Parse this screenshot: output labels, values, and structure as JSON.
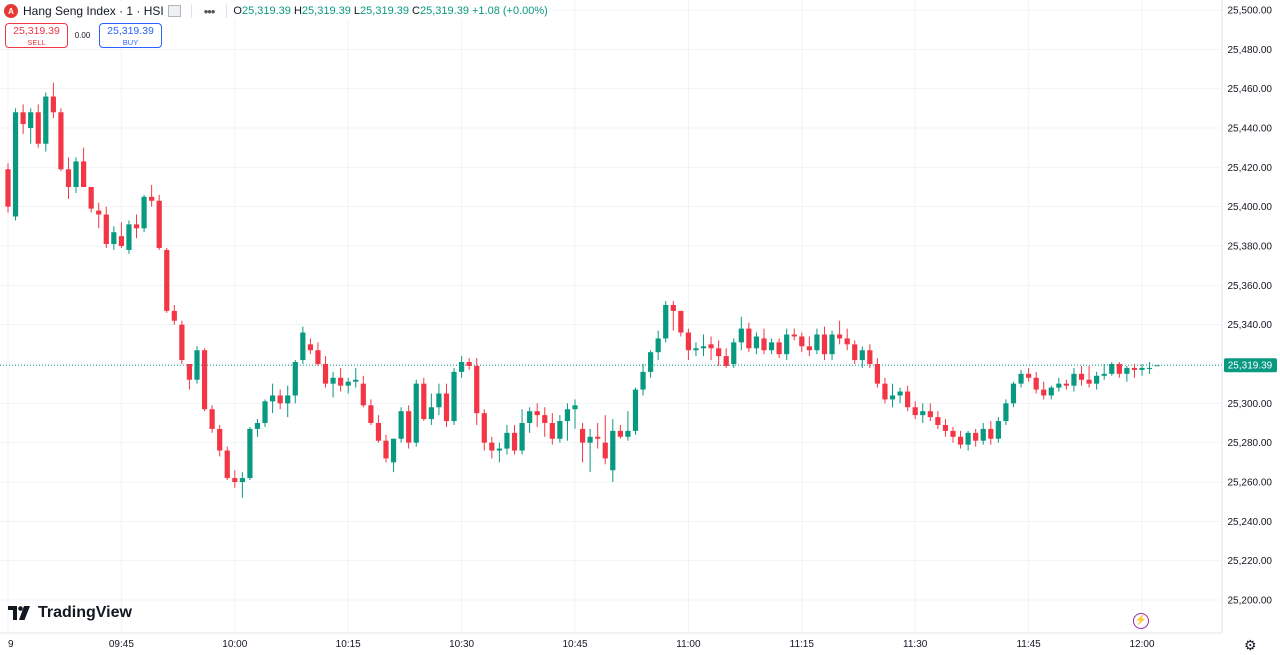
{
  "header": {
    "symbol_badge": "A",
    "symbol": "Hang Seng Index · 1 · HSI",
    "ohlc": [
      {
        "k": "O",
        "v": "25,319.39"
      },
      {
        "k": "H",
        "v": "25,319.39"
      },
      {
        "k": "L",
        "v": "25,319.39"
      },
      {
        "k": "C",
        "v": "25,319.39"
      }
    ],
    "change": "+1.08 (+0.00%)"
  },
  "trade": {
    "sell_price": "25,319.39",
    "sell_label": "SELL",
    "spread": "0.00",
    "buy_price": "25,319.39",
    "buy_label": "BUY"
  },
  "brand": "TradingView",
  "last_price_label": "25,319.39",
  "colors": {
    "up": "#089981",
    "down": "#f23645",
    "grid": "#f0f3fa"
  },
  "chart_data": {
    "type": "candlestick",
    "title": "Hang Seng Index · 1 · HSI",
    "ylim": [
      25190,
      25505
    ],
    "y_ticks": [
      25200,
      25220,
      25240,
      25260,
      25280,
      25300,
      25320,
      25340,
      25360,
      25380,
      25400,
      25420,
      25440,
      25460,
      25480,
      25500
    ],
    "y_tick_labels": [
      "25,200.00",
      "25,220.00",
      "25,240.00",
      "25,260.00",
      "25,280.00",
      "25,300.00",
      "25,320.00",
      "25,340.00",
      "25,360.00",
      "25,380.00",
      "25,400.00",
      "25,420.00",
      "25,440.00",
      "25,460.00",
      "25,480.00",
      "25,500.00"
    ],
    "x_ticks": [
      {
        "i": 0,
        "label": "9"
      },
      {
        "i": 15,
        "label": "09:45"
      },
      {
        "i": 30,
        "label": "10:00"
      },
      {
        "i": 45,
        "label": "10:15"
      },
      {
        "i": 60,
        "label": "10:30"
      },
      {
        "i": 75,
        "label": "10:45"
      },
      {
        "i": 90,
        "label": "11:00"
      },
      {
        "i": 105,
        "label": "11:15"
      },
      {
        "i": 120,
        "label": "11:30"
      },
      {
        "i": 135,
        "label": "11:45"
      },
      {
        "i": 150,
        "label": "12:00"
      }
    ],
    "last_price": 25319.39,
    "candles": [
      [
        25419,
        25422,
        25397,
        25400
      ],
      [
        25395,
        25450,
        25393,
        25448
      ],
      [
        25448,
        25452,
        25437,
        25442
      ],
      [
        25440,
        25450,
        25432,
        25448
      ],
      [
        25448,
        25452,
        25430,
        25432
      ],
      [
        25432,
        25458,
        25428,
        25456
      ],
      [
        25456,
        25463,
        25445,
        25448
      ],
      [
        25448,
        25450,
        25418,
        25419
      ],
      [
        25419,
        25425,
        25404,
        25410
      ],
      [
        25410,
        25425,
        25407,
        25423
      ],
      [
        25423,
        25430,
        25412,
        25410
      ],
      [
        25410,
        25410,
        25397,
        25399
      ],
      [
        25398,
        25402,
        25389,
        25396
      ],
      [
        25396,
        25400,
        25379,
        25381
      ],
      [
        25381,
        25390,
        25378,
        25387
      ],
      [
        25385,
        25392,
        25379,
        25380
      ],
      [
        25378,
        25393,
        25376,
        25391
      ],
      [
        25391,
        25396,
        25384,
        25389
      ],
      [
        25389,
        25406,
        25387,
        25405
      ],
      [
        25405,
        25411,
        25400,
        25403
      ],
      [
        25403,
        25406,
        25378,
        25379
      ],
      [
        25378,
        25379,
        25346,
        25347
      ],
      [
        25347,
        25350,
        25340,
        25342
      ],
      [
        25340,
        25342,
        25320,
        25322
      ],
      [
        25320,
        25320,
        25307,
        25312
      ],
      [
        25312,
        25329,
        25310,
        25327
      ],
      [
        25327,
        25328,
        25296,
        25297
      ],
      [
        25297,
        25299,
        25285,
        25287
      ],
      [
        25287,
        25289,
        25273,
        25276
      ],
      [
        25276,
        25278,
        25261,
        25262
      ],
      [
        25262,
        25266,
        25257,
        25260
      ],
      [
        25260,
        25265,
        25252,
        25262
      ],
      [
        25262,
        25288,
        25261,
        25287
      ],
      [
        25287,
        25292,
        25283,
        25290
      ],
      [
        25290,
        25302,
        25288,
        25301
      ],
      [
        25301,
        25310,
        25295,
        25304
      ],
      [
        25304,
        25307,
        25297,
        25300
      ],
      [
        25300,
        25309,
        25293,
        25304
      ],
      [
        25304,
        25322,
        25300,
        25321
      ],
      [
        25322,
        25339,
        25320,
        25336
      ],
      [
        25330,
        25333,
        25325,
        25327
      ],
      [
        25327,
        25331,
        25319,
        25320
      ],
      [
        25320,
        25324,
        25308,
        25310
      ],
      [
        25310,
        25316,
        25303,
        25313
      ],
      [
        25313,
        25318,
        25306,
        25309
      ],
      [
        25309,
        25313,
        25305,
        25311
      ],
      [
        25311,
        25318,
        25308,
        25312
      ],
      [
        25310,
        25314,
        25298,
        25299
      ],
      [
        25299,
        25302,
        25289,
        25290
      ],
      [
        25290,
        25294,
        25280,
        25281
      ],
      [
        25281,
        25284,
        25270,
        25272
      ],
      [
        25270,
        25282,
        25265,
        25282
      ],
      [
        25282,
        25298,
        25280,
        25296
      ],
      [
        25296,
        25299,
        25277,
        25280
      ],
      [
        25280,
        25312,
        25278,
        25310
      ],
      [
        25310,
        25313,
        25291,
        25292
      ],
      [
        25292,
        25305,
        25289,
        25298
      ],
      [
        25298,
        25310,
        25294,
        25305
      ],
      [
        25305,
        25310,
        25288,
        25291
      ],
      [
        25291,
        25318,
        25289,
        25316
      ],
      [
        25316,
        25324,
        25313,
        25321
      ],
      [
        25321,
        25323,
        25317,
        25319
      ],
      [
        25319,
        25323,
        25289,
        25295
      ],
      [
        25295,
        25297,
        25276,
        25280
      ],
      [
        25280,
        25283,
        25272,
        25276
      ],
      [
        25276,
        25280,
        25270,
        25277
      ],
      [
        25277,
        25289,
        25274,
        25285
      ],
      [
        25285,
        25289,
        25274,
        25276
      ],
      [
        25276,
        25297,
        25274,
        25290
      ],
      [
        25290,
        25298,
        25285,
        25296
      ],
      [
        25296,
        25300,
        25288,
        25294
      ],
      [
        25294,
        25298,
        25283,
        25290
      ],
      [
        25290,
        25295,
        25279,
        25282
      ],
      [
        25282,
        25294,
        25280,
        25291
      ],
      [
        25291,
        25300,
        25281,
        25297
      ],
      [
        25297,
        25302,
        25287,
        25299
      ],
      [
        25287,
        25290,
        25270,
        25280
      ],
      [
        25280,
        25287,
        25265,
        25283
      ],
      [
        25283,
        25290,
        25277,
        25282
      ],
      [
        25280,
        25294,
        25269,
        25272
      ],
      [
        25266,
        25292,
        25260,
        25286
      ],
      [
        25286,
        25289,
        25282,
        25283
      ],
      [
        25283,
        25296,
        25281,
        25286
      ],
      [
        25286,
        25308,
        25284,
        25307
      ],
      [
        25307,
        25320,
        25304,
        25316
      ],
      [
        25316,
        25327,
        25313,
        25326
      ],
      [
        25326,
        25337,
        25322,
        25333
      ],
      [
        25333,
        25352,
        25331,
        25350
      ],
      [
        25350,
        25352,
        25337,
        25347
      ],
      [
        25347,
        25347,
        25334,
        25336
      ],
      [
        25336,
        25338,
        25322,
        25327
      ],
      [
        25327,
        25331,
        25324,
        25328
      ],
      [
        25328,
        25335,
        25324,
        25329
      ],
      [
        25330,
        25334,
        25322,
        25328
      ],
      [
        25328,
        25332,
        25319,
        25324
      ],
      [
        25324,
        25328,
        25318,
        25319
      ],
      [
        25320,
        25333,
        25318,
        25331
      ],
      [
        25331,
        25344,
        25327,
        25338
      ],
      [
        25338,
        25341,
        25326,
        25328
      ],
      [
        25328,
        25336,
        25325,
        25334
      ],
      [
        25333,
        25338,
        25325,
        25327
      ],
      [
        25327,
        25333,
        25325,
        25331
      ],
      [
        25331,
        25333,
        25323,
        25325
      ],
      [
        25325,
        25338,
        25322,
        25335
      ],
      [
        25335,
        25338,
        25332,
        25334
      ],
      [
        25334,
        25336,
        25326,
        25329
      ],
      [
        25329,
        25334,
        25324,
        25327
      ],
      [
        25327,
        25338,
        25325,
        25335
      ],
      [
        25335,
        25339,
        25322,
        25325
      ],
      [
        25325,
        25337,
        25322,
        25335
      ],
      [
        25335,
        25342,
        25330,
        25333
      ],
      [
        25333,
        25338,
        25327,
        25330
      ],
      [
        25330,
        25332,
        25320,
        25322
      ],
      [
        25322,
        25329,
        25318,
        25327
      ],
      [
        25327,
        25330,
        25318,
        25320
      ],
      [
        25320,
        25323,
        25308,
        25310
      ],
      [
        25310,
        25313,
        25300,
        25302
      ],
      [
        25302,
        25310,
        25298,
        25304
      ],
      [
        25304,
        25308,
        25300,
        25306
      ],
      [
        25306,
        25309,
        25296,
        25298
      ],
      [
        25298,
        25301,
        25292,
        25294
      ],
      [
        25294,
        25300,
        25290,
        25296
      ],
      [
        25296,
        25300,
        25291,
        25293
      ],
      [
        25293,
        25296,
        25287,
        25289
      ],
      [
        25289,
        25292,
        25283,
        25286
      ],
      [
        25286,
        25288,
        25280,
        25283
      ],
      [
        25283,
        25286,
        25277,
        25279
      ],
      [
        25279,
        25286,
        25276,
        25285
      ],
      [
        25285,
        25287,
        25278,
        25281
      ],
      [
        25281,
        25290,
        25279,
        25287
      ],
      [
        25287,
        25291,
        25279,
        25282
      ],
      [
        25282,
        25293,
        25280,
        25291
      ],
      [
        25291,
        25302,
        25289,
        25300
      ],
      [
        25300,
        25311,
        25298,
        25310
      ],
      [
        25310,
        25317,
        25308,
        25315
      ],
      [
        25315,
        25318,
        25311,
        25313
      ],
      [
        25313,
        25316,
        25305,
        25307
      ],
      [
        25307,
        25311,
        25302,
        25304
      ],
      [
        25304,
        25309,
        25302,
        25308
      ],
      [
        25308,
        25313,
        25306,
        25310
      ],
      [
        25310,
        25312,
        25307,
        25309
      ],
      [
        25309,
        25318,
        25306,
        25315
      ],
      [
        25315,
        25319,
        25309,
        25312
      ],
      [
        25312,
        25319,
        25308,
        25310
      ],
      [
        25310,
        25316,
        25307,
        25314
      ],
      [
        25314,
        25320,
        25312,
        25315
      ],
      [
        25315,
        25321,
        25314,
        25320
      ],
      [
        25320,
        25321,
        25313,
        25315
      ],
      [
        25315,
        25319,
        25311,
        25318
      ],
      [
        25318,
        25320,
        25313,
        25317
      ],
      [
        25317,
        25320,
        25314,
        25318
      ],
      [
        25318,
        25321,
        25315,
        25318
      ],
      [
        25319.39,
        25319.39,
        25319.39,
        25319.39
      ]
    ]
  }
}
